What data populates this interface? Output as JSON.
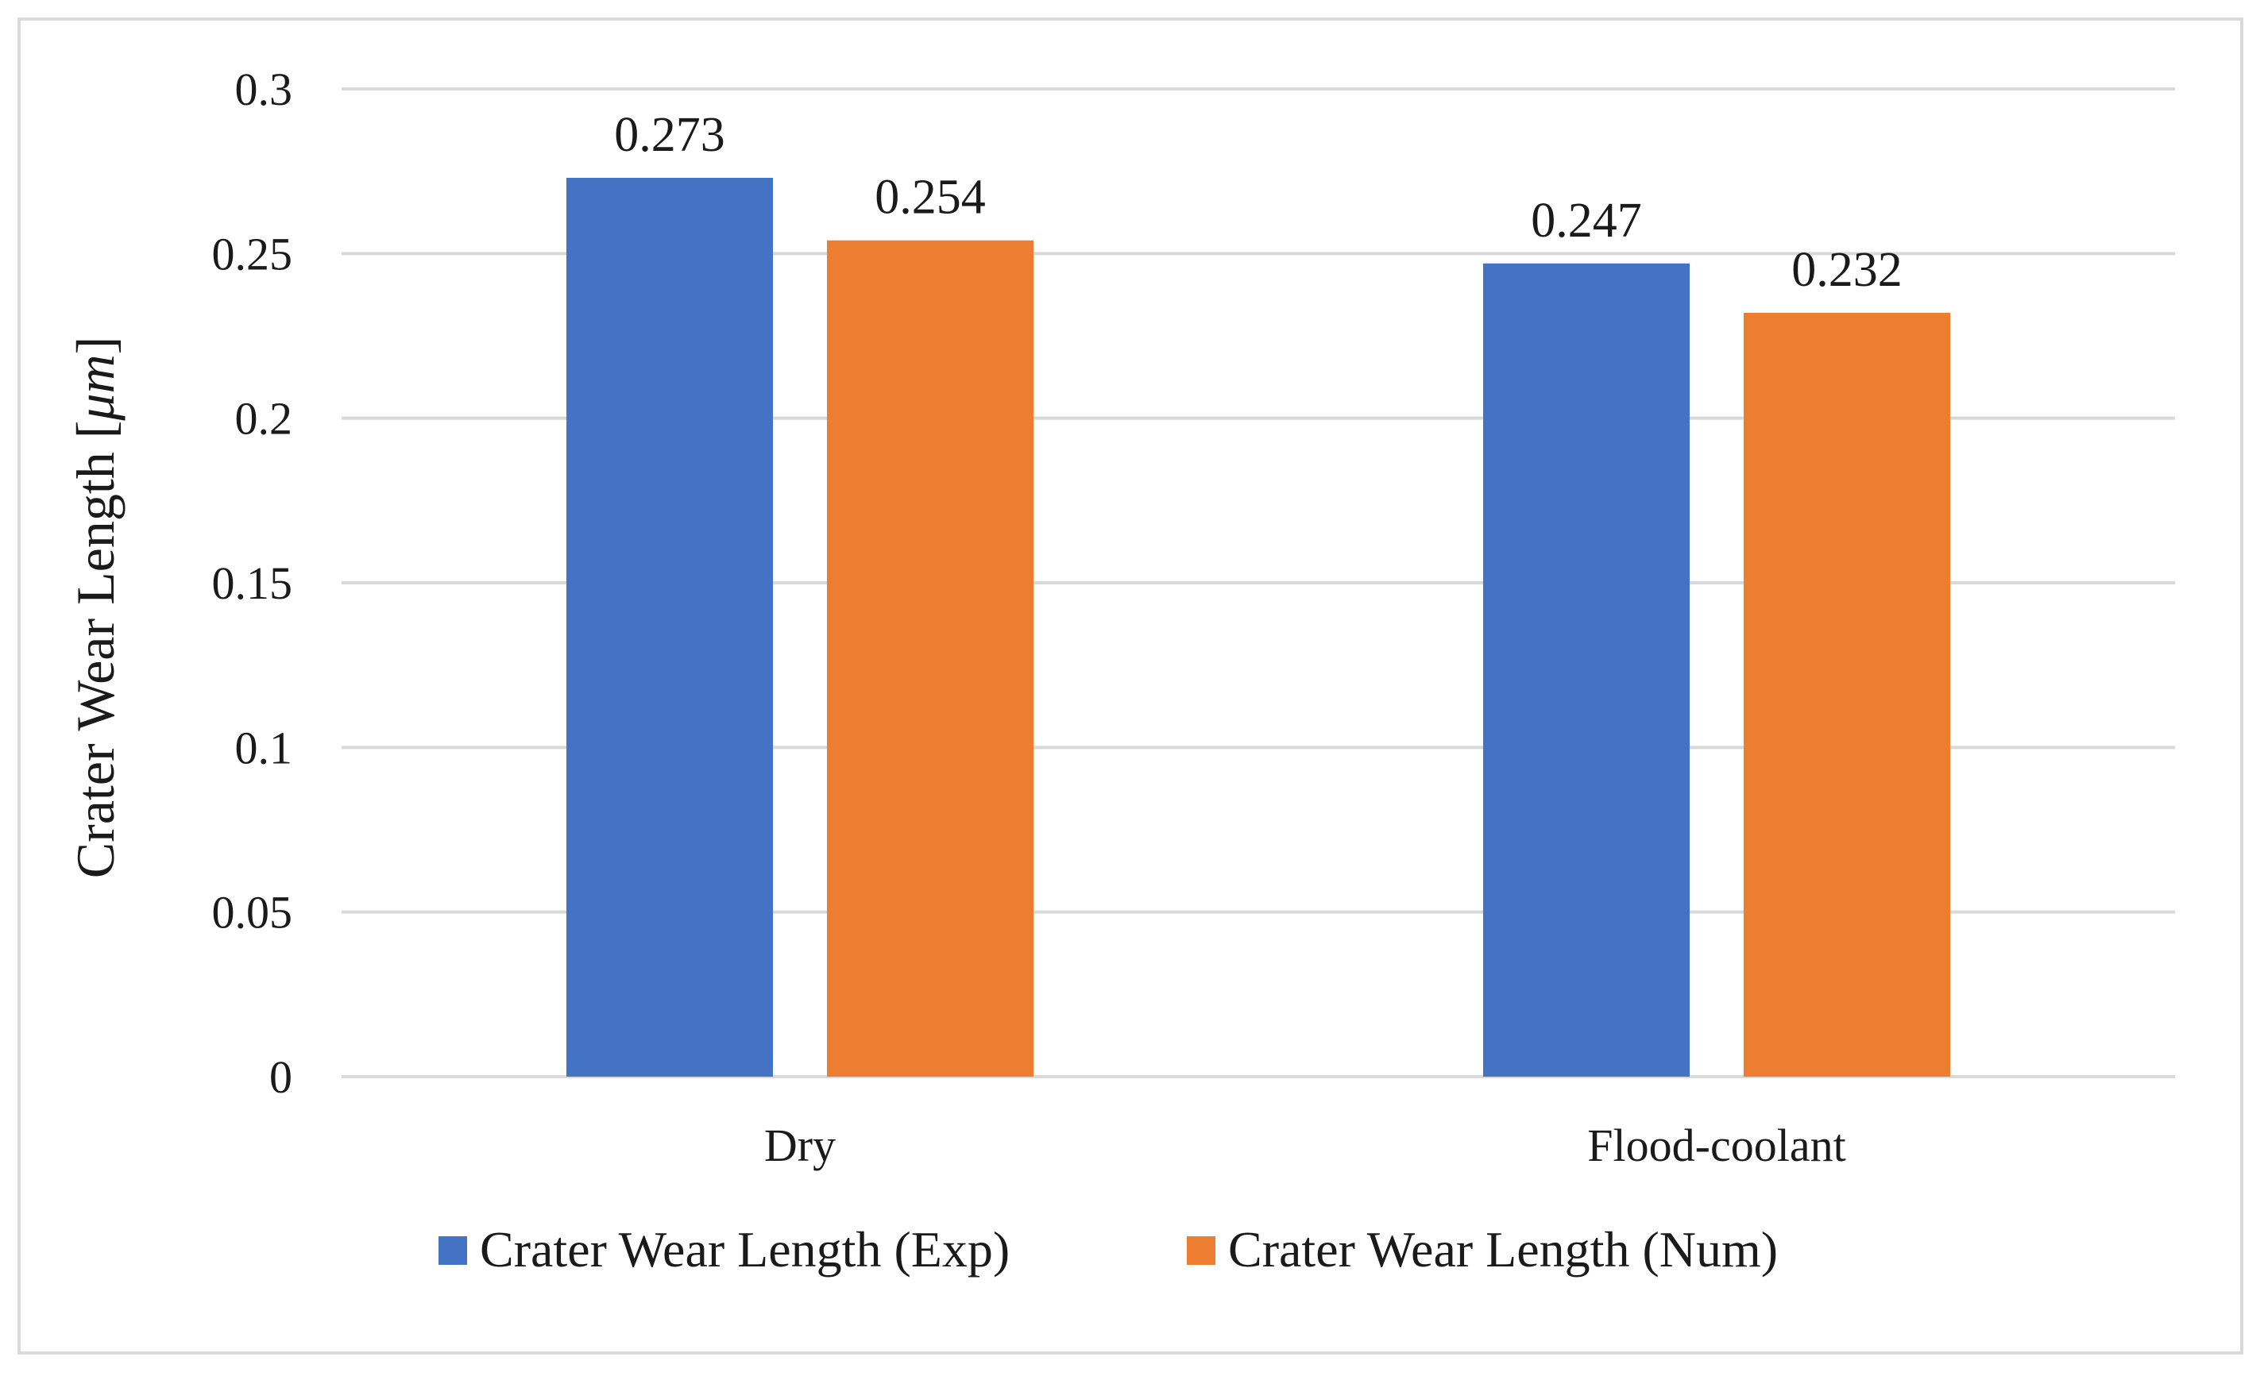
{
  "chart_data": {
    "type": "bar",
    "title": "",
    "xlabel": "",
    "ylabel": "Crater Wear Length [",
    "ylabel_unit": "μm",
    "ylabel_close": "]",
    "categories": [
      "Dry",
      "Flood-coolant"
    ],
    "series": [
      {
        "name": "Crater Wear Length (Exp)",
        "color": "#4472c4",
        "values": [
          0.273,
          0.247
        ],
        "labels": [
          "0.273",
          "0.247"
        ]
      },
      {
        "name": "Crater Wear Length (Num)",
        "color": "#ed7d31",
        "values": [
          0.254,
          0.232
        ],
        "labels": [
          "0.254",
          "0.232"
        ]
      }
    ],
    "ylim": [
      0,
      0.3
    ],
    "yticks": [
      0,
      0.05,
      0.1,
      0.15,
      0.2,
      0.25,
      0.3
    ],
    "ytick_labels": [
      "0",
      "0.05",
      "0.1",
      "0.15",
      "0.2",
      "0.25",
      "0.3"
    ],
    "grid": true,
    "gridline_color": "#d9d9d9",
    "legend_position": "bottom"
  }
}
